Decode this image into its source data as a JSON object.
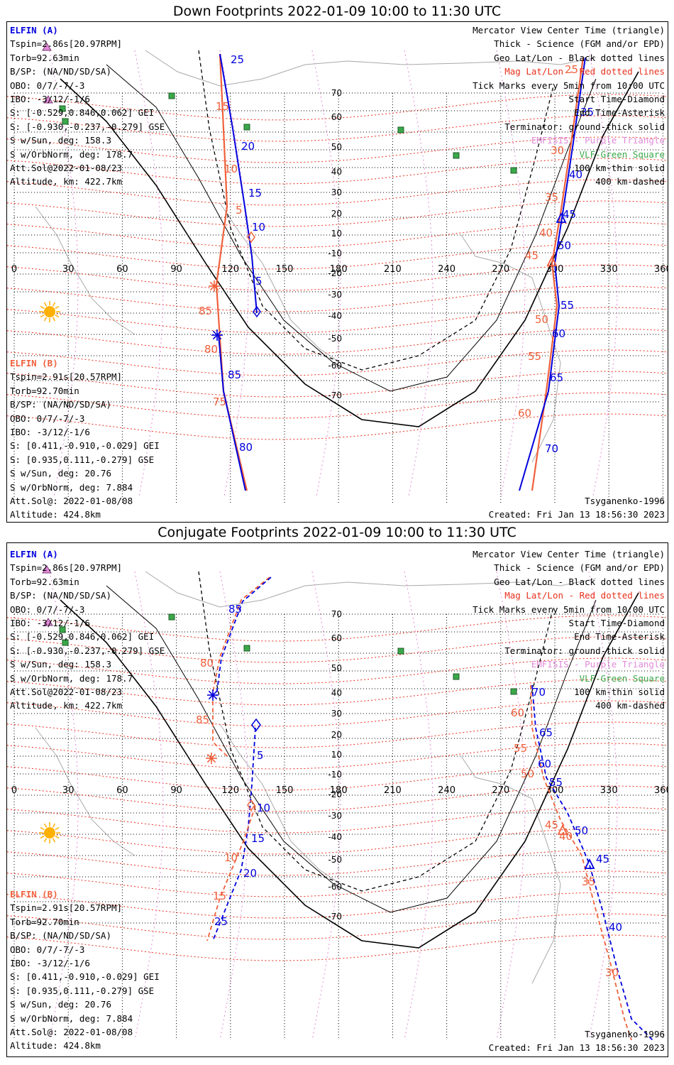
{
  "panels": [
    {
      "title": "Down Footprints 2022-01-09 10:00 to 11:30 UTC",
      "sat_a": {
        "name": "ELFIN (A)",
        "lines": [
          "Tspin=2.86s[20.97RPM]",
          "Torb=92.63min",
          "B/SP: (NA/ND/SD/SA)",
          "OBO: 0/7/-7/-3",
          "IBO: -3/12/-1/6",
          "S: [-0.529,0.846,0.062] GEI",
          "S: [-0.930,-0.237,-0.279] GSE",
          "S w/Sun, deg: 158.3",
          "S w/OrbNorm, deg: 178.7",
          "Att.Sol@2022-01-08/23",
          "Altitude, km: 422.7km"
        ]
      },
      "sat_b": {
        "name": "ELFIN (B)",
        "lines": [
          "Tspin=2.91s[20.57RPM]",
          "Torb=92.70min",
          "B/SP: (NA/ND/SD/SA)",
          "OBO: 0/7/-7/-3",
          "IBO: -3/12/-1/6",
          "S: [0.411,-0.910,-0.029] GEI",
          "S: [0.935,0.111,-0.279] GSE",
          "S w/Sun, deg: 20.76",
          "S w/OrbNorm, deg: 7.884",
          "Att.Sol@: 2022-01-08/08",
          "Altitude: 424.8km"
        ]
      },
      "legend": [
        {
          "text": "Mercator View Center Time (triangle)",
          "color": "#000000"
        },
        {
          "text": "Thick - Science (FGM and/or EPD)",
          "color": "#000000"
        },
        {
          "text": "Geo Lat/Lon - Black dotted lines",
          "color": "#000000"
        },
        {
          "text": "Mag Lat/Lon - Red dotted lines",
          "color": "#e8301c"
        },
        {
          "text": "Tick Marks every 5min from 10:00 UTC",
          "color": "#000000"
        },
        {
          "text": "Start Time-Diamond",
          "color": "#000000"
        },
        {
          "text": "End Time-Asterisk",
          "color": "#000000"
        },
        {
          "text": "Terminator: ground-thick solid",
          "color": "#000000"
        },
        {
          "text": "EMFISIS - Purple Triangle",
          "color": "#e08ad8"
        },
        {
          "text": "VLF-Green Square",
          "color": "#3aa84a"
        },
        {
          "text": "100 km-thin solid",
          "color": "#000000"
        },
        {
          "text": "400 km-dashed",
          "color": "#000000"
        }
      ],
      "model": "Tsyganenko-1996",
      "created": "Created: Fri Jan 13 18:56:30 2023"
    },
    {
      "title": "Conjugate Footprints 2022-01-09 10:00 to 11:30 UTC",
      "sat_a": {
        "name": "ELFIN (A)",
        "lines": [
          "Tspin=2.86s[20.97RPM]",
          "Torb=92.63min",
          "B/SP: (NA/ND/SD/SA)",
          "OBO: 0/7/-7/-3",
          "IBO: -3/12/-1/6",
          "S: [-0.529,0.846,0.062] GEI",
          "S: [-0.930,-0.237,-0.279] GSE",
          "S w/Sun, deg: 158.3",
          "S w/OrbNorm, deg: 178.7",
          "Att.Sol@2022-01-08/23",
          "Altitude, km: 422.7km"
        ]
      },
      "sat_b": {
        "name": "ELFIN (B)",
        "lines": [
          "Tspin=2.91s[20.57RPM]",
          "Torb=92.70min",
          "B/SP: (NA/ND/SD/SA)",
          "OBO: 0/7/-7/-3",
          "IBO: -3/12/-1/6",
          "S: [0.411,-0.910,-0.029] GEI",
          "S: [0.935,0.111,-0.279] GSE",
          "S w/Sun, deg: 20.76",
          "S w/OrbNorm, deg: 7.884",
          "Att.Sol@: 2022-01-08/08",
          "Altitude: 424.8km"
        ]
      },
      "legend": [
        {
          "text": "Mercator View Center Time (triangle)",
          "color": "#000000"
        },
        {
          "text": "Thick - Science (FGM and/or EPD)",
          "color": "#000000"
        },
        {
          "text": "Geo Lat/Lon - Black dotted lines",
          "color": "#000000"
        },
        {
          "text": "Mag Lat/Lon - Red dotted lines",
          "color": "#e8301c"
        },
        {
          "text": "Tick Marks every 5min from 10:00 UTC",
          "color": "#000000"
        },
        {
          "text": "Start Time-Diamond",
          "color": "#000000"
        },
        {
          "text": "End Time-Asterisk",
          "color": "#000000"
        },
        {
          "text": "Terminator: ground-thick solid",
          "color": "#000000"
        },
        {
          "text": "EMFISIS - Purple Triangle",
          "color": "#e08ad8"
        },
        {
          "text": "VLF-Green Square",
          "color": "#3aa84a"
        },
        {
          "text": "100 km-thin solid",
          "color": "#000000"
        },
        {
          "text": "400 km-dashed",
          "color": "#000000"
        }
      ],
      "model": "Tsyganenko-1996",
      "created": "Created: Fri Jan 13 18:56:30 2023"
    }
  ],
  "map": {
    "lon_ticks": [
      "0",
      "30",
      "60",
      "90",
      "120",
      "150",
      "180",
      "210",
      "240",
      "270",
      "300",
      "330",
      "360"
    ],
    "lat_ticks": [
      "70",
      "60",
      "50",
      "40",
      "30",
      "20",
      "10",
      "-10",
      "-20",
      "-30",
      "-40",
      "-50",
      "-60",
      "-70"
    ],
    "colors": {
      "sat_a": "#0000dd",
      "sat_b": "#f0603c",
      "sun": "#ffb000",
      "vlf": "#3aa84a",
      "mag_grid": "#e8301c",
      "geo_grid": "#000000",
      "emfisis": "#e08ad8"
    },
    "down": {
      "a_west_ticks": [
        "25",
        "20",
        "15",
        "10",
        "5"
      ],
      "a_east_ticks": [
        "35",
        "40",
        "45",
        "50",
        "55",
        "60",
        "65",
        "70"
      ],
      "b_west_ticks": [
        "15",
        "10",
        "5",
        "85",
        "80",
        "75"
      ],
      "b_west_blue": [
        "85",
        "80"
      ],
      "b_east_ticks": [
        "25",
        "30",
        "35",
        "40",
        "45",
        "50",
        "55",
        "60"
      ]
    },
    "conj": {
      "a_west_ticks": [
        "85",
        "5",
        "10",
        "15",
        "20",
        "25"
      ],
      "a_east_ticks": [
        "70",
        "65",
        "60",
        "55",
        "50",
        "45",
        "40"
      ],
      "b_west_ticks": [
        "80",
        "85",
        "10",
        "15"
      ],
      "b_east_ticks": [
        "60",
        "55",
        "50",
        "45",
        "40",
        "35",
        "30"
      ]
    }
  }
}
